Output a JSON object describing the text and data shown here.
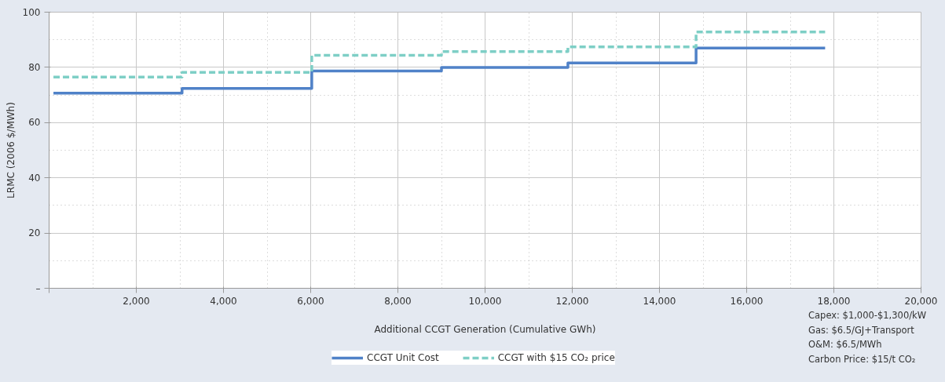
{
  "chart_data": {
    "type": "step",
    "xlabel": "Additional CCGT Generation (Cumulative GWh)",
    "ylabel": "LRMC (2006 $/MWh)",
    "x": [
      100,
      3050,
      6025,
      9000,
      11900,
      14840,
      17800
    ],
    "series": [
      {
        "name": "CCGT Unit Cost",
        "color": "#5082c8",
        "line_style": "solid",
        "values": [
          70.7,
          72.4,
          78.7,
          80.0,
          81.6,
          87.0,
          87.0
        ]
      },
      {
        "name": "CCGT with $15 CO₂ price",
        "color": "#7ecfc6",
        "line_style": "dashed",
        "values": [
          76.5,
          78.2,
          84.4,
          85.7,
          87.4,
          92.8,
          92.8
        ]
      }
    ],
    "xlim": [
      0,
      20000
    ],
    "xticks": [
      {
        "value": 0,
        "label": null
      },
      {
        "value": 2000,
        "label": "2,000"
      },
      {
        "value": 4000,
        "label": "4,000"
      },
      {
        "value": 6000,
        "label": "6,000"
      },
      {
        "value": 8000,
        "label": "8,000"
      },
      {
        "value": 10000,
        "label": "10,000"
      },
      {
        "value": 12000,
        "label": "12,000"
      },
      {
        "value": 14000,
        "label": "14,000"
      },
      {
        "value": 16000,
        "label": "16,000"
      },
      {
        "value": 18000,
        "label": "18,000"
      },
      {
        "value": 20000,
        "label": "20,000"
      }
    ],
    "ylim": [
      0,
      100
    ],
    "yticks": [
      {
        "value": 0,
        "label": "–"
      },
      20,
      40,
      60,
      80,
      100
    ],
    "grid": true,
    "legend": "bottom",
    "annotations": [
      "Capex: $1,000-$1,300/kW",
      "Gas: $6.5/GJ+Transport",
      "O&M: $6.5/MWh",
      "Carbon Price: $15/t CO₂"
    ]
  }
}
